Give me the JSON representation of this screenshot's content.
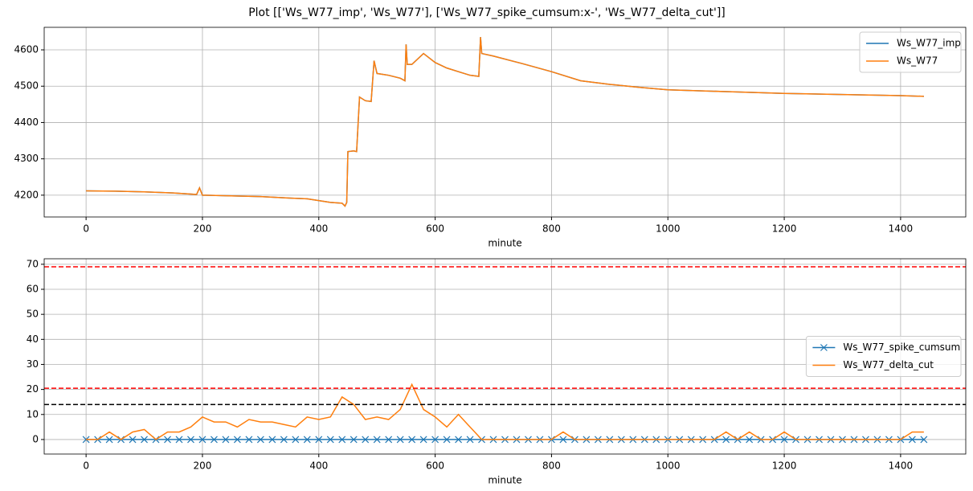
{
  "title": "Plot [['Ws_W77_imp', 'Ws_W77'], ['Ws_W77_spike_cumsum:x-', 'Ws_W77_delta_cut']]",
  "chart_data": [
    {
      "type": "line",
      "xlabel": "minute",
      "grid": true,
      "legend": "upper right",
      "xlim": [
        -72,
        1512
      ],
      "xticks": [
        0,
        200,
        400,
        600,
        800,
        1000,
        1200,
        1400
      ],
      "ylim": [
        4140,
        4662
      ],
      "yticks": [
        4200,
        4300,
        4400,
        4500,
        4600
      ],
      "x": [
        0,
        50,
        100,
        150,
        180,
        190,
        195,
        200,
        250,
        300,
        350,
        380,
        400,
        420,
        440,
        445,
        448,
        450,
        460,
        465,
        470,
        480,
        490,
        495,
        500,
        520,
        540,
        548,
        550,
        552,
        560,
        580,
        600,
        620,
        640,
        660,
        675,
        678,
        680,
        700,
        750,
        800,
        850,
        900,
        950,
        1000,
        1100,
        1200,
        1300,
        1400,
        1440
      ],
      "series": [
        {
          "name": "Ws_W77_imp",
          "color": "#1f77b4",
          "values": [
            4212,
            4211,
            4209,
            4206,
            4203,
            4202,
            4220,
            4200,
            4198,
            4196,
            4192,
            4190,
            4185,
            4180,
            4178,
            4170,
            4180,
            4320,
            4322,
            4320,
            4470,
            4460,
            4458,
            4570,
            4535,
            4530,
            4522,
            4515,
            4615,
            4560,
            4560,
            4590,
            4565,
            4550,
            4540,
            4530,
            4527,
            4635,
            4590,
            4583,
            4562,
            4540,
            4515,
            4505,
            4497,
            4490,
            4485,
            4480,
            4477,
            4474,
            4472
          ]
        },
        {
          "name": "Ws_W77",
          "color": "#ff7f0e",
          "values": [
            4212,
            4211,
            4209,
            4206,
            4203,
            4202,
            4220,
            4200,
            4198,
            4196,
            4192,
            4190,
            4185,
            4180,
            4178,
            4170,
            4180,
            4320,
            4322,
            4320,
            4470,
            4460,
            4458,
            4570,
            4535,
            4530,
            4522,
            4515,
            4615,
            4560,
            4560,
            4590,
            4565,
            4550,
            4540,
            4530,
            4527,
            4635,
            4590,
            4583,
            4562,
            4540,
            4515,
            4505,
            4497,
            4490,
            4485,
            4480,
            4477,
            4474,
            4472
          ]
        }
      ]
    },
    {
      "type": "line",
      "xlabel": "minute",
      "grid": true,
      "legend": "center right",
      "xlim": [
        -72,
        1512
      ],
      "xticks": [
        0,
        200,
        400,
        600,
        800,
        1000,
        1200,
        1400
      ],
      "ylim": [
        -5.8,
        72.2
      ],
      "yticks": [
        0,
        10,
        20,
        30,
        40,
        50,
        60,
        70
      ],
      "hlines": [
        {
          "value": 69,
          "color": "red"
        },
        {
          "value": 20.5,
          "color": "red"
        },
        {
          "value": 14,
          "color": "black"
        }
      ],
      "x": [
        0,
        20,
        40,
        60,
        80,
        100,
        120,
        140,
        160,
        180,
        200,
        220,
        240,
        260,
        280,
        300,
        320,
        340,
        360,
        380,
        400,
        420,
        440,
        460,
        480,
        500,
        520,
        540,
        560,
        580,
        600,
        620,
        640,
        660,
        680,
        700,
        720,
        740,
        760,
        780,
        800,
        820,
        840,
        860,
        880,
        900,
        920,
        940,
        960,
        980,
        1000,
        1020,
        1040,
        1060,
        1080,
        1100,
        1120,
        1140,
        1160,
        1180,
        1200,
        1220,
        1240,
        1260,
        1280,
        1300,
        1320,
        1340,
        1360,
        1380,
        1400,
        1420,
        1440
      ],
      "series": [
        {
          "name": "Ws_W77_spike_cumsum",
          "color": "#1f77b4",
          "marker": "x",
          "values": [
            0,
            0,
            0,
            0,
            0,
            0,
            0,
            0,
            0,
            0,
            0,
            0,
            0,
            0,
            0,
            0,
            0,
            0,
            0,
            0,
            0,
            0,
            0,
            0,
            0,
            0,
            0,
            0,
            0,
            0,
            0,
            0,
            0,
            0,
            0,
            0,
            0,
            0,
            0,
            0,
            0,
            0,
            0,
            0,
            0,
            0,
            0,
            0,
            0,
            0,
            0,
            0,
            0,
            0,
            0,
            0,
            0,
            0,
            0,
            0,
            0,
            0,
            0,
            0,
            0,
            0,
            0,
            0,
            0,
            0,
            0,
            0,
            0
          ]
        },
        {
          "name": "Ws_W77_delta_cut",
          "color": "#ff7f0e",
          "values": [
            0,
            0,
            3,
            0,
            3,
            4,
            0,
            3,
            3,
            5,
            9,
            7,
            7,
            5,
            8,
            7,
            7,
            6,
            5,
            9,
            8,
            9,
            17,
            14,
            8,
            9,
            8,
            12,
            22,
            12,
            9,
            5,
            10,
            5,
            0,
            0,
            0,
            0,
            0,
            0,
            0,
            3,
            0,
            0,
            0,
            0,
            0,
            0,
            0,
            0,
            0,
            0,
            0,
            0,
            0,
            3,
            0,
            3,
            0,
            0,
            3,
            0,
            0,
            0,
            0,
            0,
            0,
            0,
            0,
            0,
            0,
            3,
            3
          ]
        }
      ]
    }
  ]
}
